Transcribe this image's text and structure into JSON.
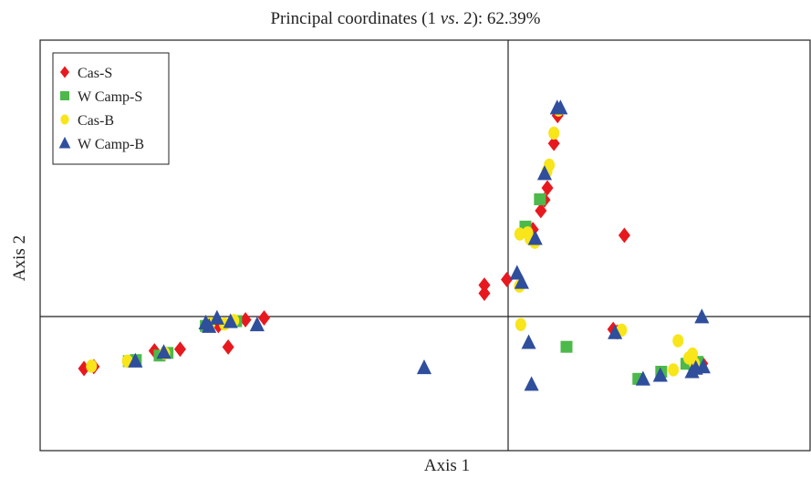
{
  "chart_data": {
    "type": "scatter",
    "title_prefix": "Principal coordinates (1 ",
    "title_vs": "vs",
    "title_suffix": ". 2): 62.39%",
    "xlabel": "Axis 1",
    "ylabel": "Axis 2",
    "xlim": [
      -1.0,
      0.65
    ],
    "ylim": [
      -0.51,
      1.04
    ],
    "grid": false,
    "legend_position": "top-left",
    "series": [
      {
        "name": "Cas-S",
        "marker": "diamond",
        "color": "#e8191e",
        "points": [
          [
            -0.906,
            -0.2
          ],
          [
            -0.885,
            -0.193
          ],
          [
            -0.755,
            -0.133
          ],
          [
            -0.7,
            -0.127
          ],
          [
            -0.597,
            -0.119
          ],
          [
            -0.618,
            -0.038
          ],
          [
            -0.56,
            -0.016
          ],
          [
            -0.52,
            -0.009
          ],
          [
            -0.048,
            0.084
          ],
          [
            -0.048,
            0.115
          ],
          [
            0.0,
            0.136
          ],
          [
            0.056,
            0.325
          ],
          [
            0.073,
            0.396
          ],
          [
            0.081,
            0.437
          ],
          [
            0.087,
            0.482
          ],
          [
            0.101,
            0.65
          ],
          [
            0.109,
            0.755
          ],
          [
            0.252,
            0.303
          ],
          [
            0.228,
            -0.052
          ],
          [
            0.237,
            -0.062
          ],
          [
            0.396,
            -0.188
          ],
          [
            0.419,
            -0.181
          ]
        ]
      },
      {
        "name": "W Camp-S",
        "marker": "square",
        "color": "#4cb94a",
        "points": [
          [
            -0.81,
            -0.172
          ],
          [
            -0.795,
            -0.168
          ],
          [
            -0.744,
            -0.151
          ],
          [
            -0.727,
            -0.141
          ],
          [
            -0.645,
            -0.039
          ],
          [
            -0.58,
            -0.021
          ],
          [
            0.04,
            0.336
          ],
          [
            0.071,
            0.439
          ],
          [
            0.128,
            -0.118
          ],
          [
            0.282,
            -0.239
          ],
          [
            0.331,
            -0.212
          ],
          [
            0.385,
            -0.182
          ],
          [
            0.401,
            -0.184
          ],
          [
            0.409,
            -0.175
          ]
        ]
      },
      {
        "name": "Cas-B",
        "marker": "circle",
        "color": "#f8e51a",
        "points": [
          [
            -0.89,
            -0.191
          ],
          [
            -0.813,
            -0.172
          ],
          [
            -0.733,
            -0.142
          ],
          [
            -0.636,
            -0.03
          ],
          [
            -0.605,
            -0.032
          ],
          [
            -0.585,
            -0.019
          ],
          [
            0.03,
            -0.034
          ],
          [
            0.028,
            0.308
          ],
          [
            0.045,
            0.312
          ],
          [
            0.05,
            0.289
          ],
          [
            0.06,
            0.277
          ],
          [
            0.027,
            0.111
          ],
          [
            0.086,
            0.544
          ],
          [
            0.091,
            0.568
          ],
          [
            0.101,
            0.689
          ],
          [
            0.111,
            0.776
          ],
          [
            0.246,
            -0.055
          ],
          [
            0.357,
            -0.205
          ],
          [
            0.367,
            -0.095
          ],
          [
            0.39,
            -0.16
          ],
          [
            0.398,
            -0.145
          ],
          [
            0.402,
            -0.18
          ]
        ]
      },
      {
        "name": "W Camp-B",
        "marker": "triangle",
        "color": "#2f4e9c",
        "points": [
          [
            -0.796,
            -0.172
          ],
          [
            -0.735,
            -0.139
          ],
          [
            -0.638,
            -0.041
          ],
          [
            -0.621,
            -0.01
          ],
          [
            -0.645,
            -0.028
          ],
          [
            -0.592,
            -0.023
          ],
          [
            -0.535,
            -0.035
          ],
          [
            -0.177,
            -0.197
          ],
          [
            0.022,
            0.16
          ],
          [
            0.032,
            0.125
          ],
          [
            0.061,
            0.291
          ],
          [
            0.081,
            0.536
          ],
          [
            0.115,
            0.784
          ],
          [
            0.108,
            0.784
          ],
          [
            0.053,
            -0.26
          ],
          [
            0.047,
            -0.102
          ],
          [
            0.232,
            -0.065
          ],
          [
            0.292,
            -0.24
          ],
          [
            0.329,
            -0.226
          ],
          [
            0.405,
            -0.199
          ],
          [
            0.421,
            -0.194
          ],
          [
            0.397,
            -0.212
          ],
          [
            0.418,
            -0.005
          ]
        ]
      }
    ]
  }
}
